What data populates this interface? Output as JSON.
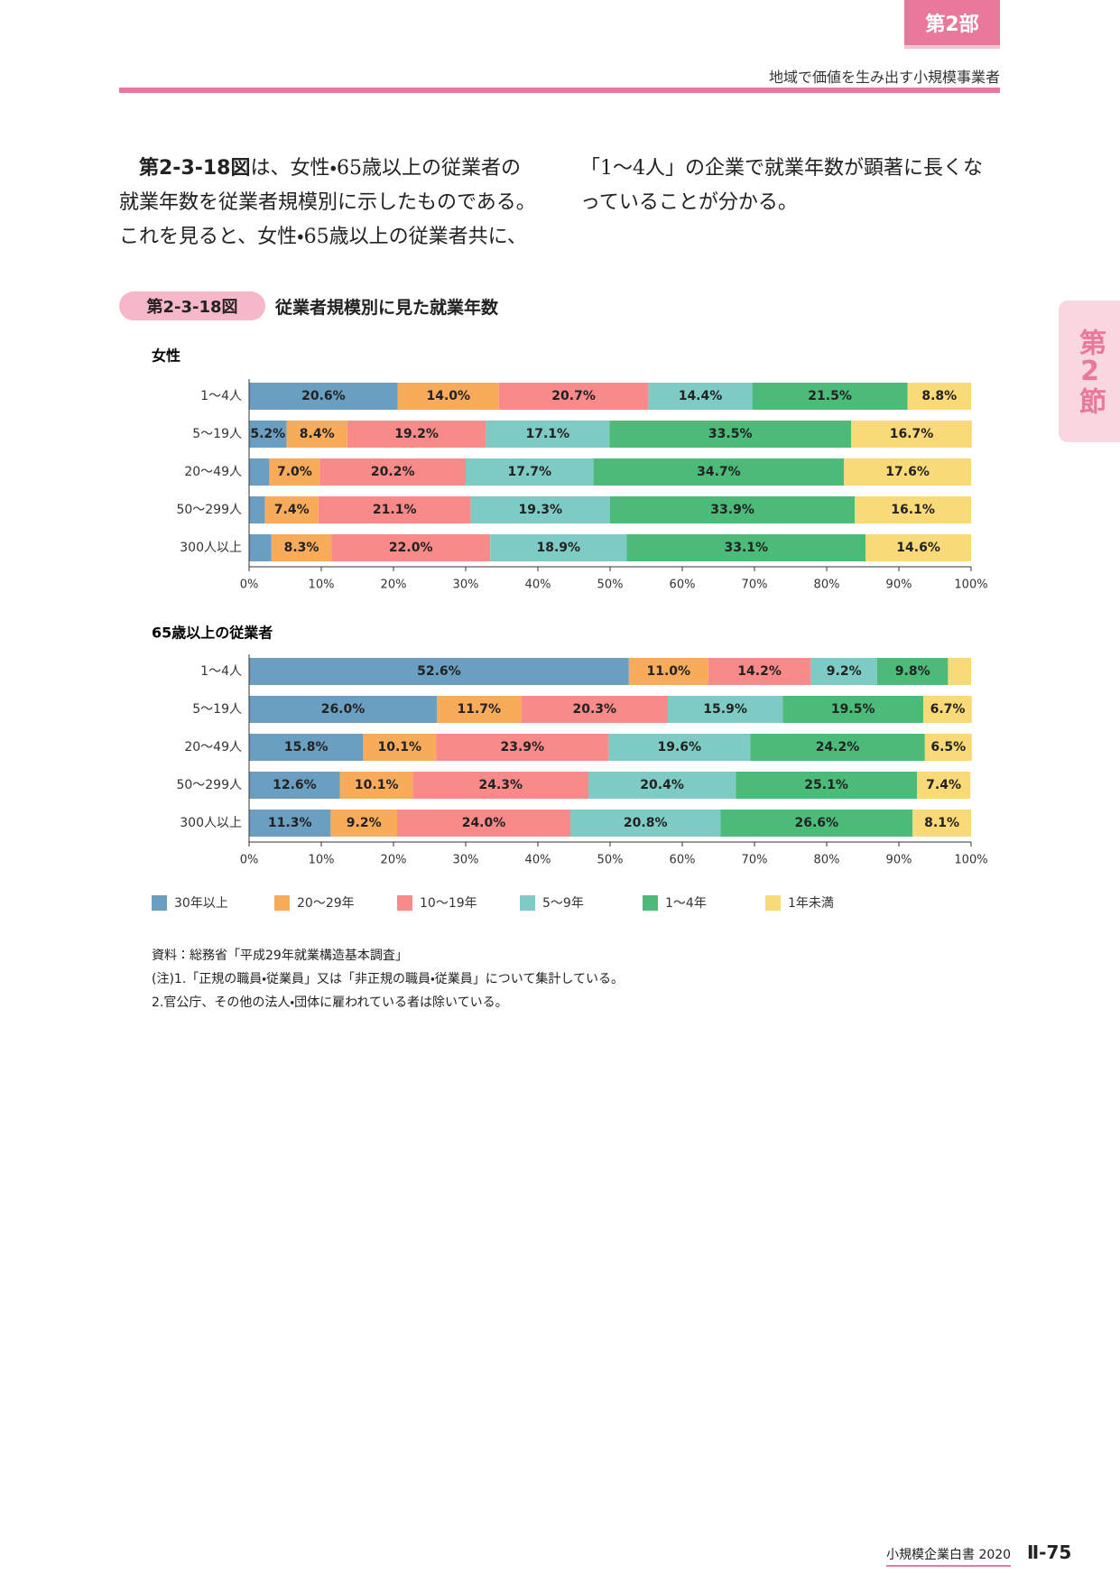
{
  "header": {
    "part": "第2部",
    "subtitle": "地域で価値を生み出す小規模事業者"
  },
  "side_tab": "第2節",
  "body": {
    "ref": "第2-3-18図",
    "text": "は、女性・65歳以上の従業者の就業年数を従業者規模別に示したものである。これを見ると、女性・65歳以上の従業者共に、「1～4人」の企業で就業年数が顕著に長くなっていることが分かる。"
  },
  "figure": {
    "label": "第2-3-18図",
    "title": "従業者規模別に見た就業年数"
  },
  "chart_data": [
    {
      "type": "bar",
      "orientation": "horizontal",
      "stacked": true,
      "title": "女性",
      "categories": [
        "1～4人",
        "5～19人",
        "20～49人",
        "50～299人",
        "300人以上"
      ],
      "series": [
        {
          "name": "30年以上",
          "color": "#6a9fc2",
          "values": [
            20.6,
            5.2,
            2.8,
            2.2,
            3.1
          ],
          "value_labels": [
            "20.6%",
            "5.2%",
            null,
            null,
            null
          ]
        },
        {
          "name": "20～29年",
          "color": "#f9ab5c",
          "values": [
            14.0,
            8.4,
            7.0,
            7.4,
            8.3
          ],
          "value_labels": [
            "14.0%",
            "8.4%",
            "7.0%",
            "7.4%",
            "8.3%"
          ]
        },
        {
          "name": "10～19年",
          "color": "#f98a8a",
          "values": [
            20.7,
            19.2,
            20.2,
            21.1,
            22.0
          ],
          "value_labels": [
            "20.7%",
            "19.2%",
            "20.2%",
            "21.1%",
            "22.0%"
          ]
        },
        {
          "name": "5～9年",
          "color": "#7ecbc6",
          "values": [
            14.4,
            17.1,
            17.7,
            19.3,
            18.9
          ],
          "value_labels": [
            "14.4%",
            "17.1%",
            "17.7%",
            "19.3%",
            "18.9%"
          ]
        },
        {
          "name": "1～4年",
          "color": "#4cbb7a",
          "values": [
            21.5,
            33.5,
            34.7,
            33.9,
            33.1
          ],
          "value_labels": [
            "21.5%",
            "33.5%",
            "34.7%",
            "33.9%",
            "33.1%"
          ]
        },
        {
          "name": "1年未満",
          "color": "#f9d978",
          "values": [
            8.8,
            16.7,
            17.6,
            16.1,
            14.6
          ],
          "value_labels": [
            "8.8%",
            "16.7%",
            "17.6%",
            "16.1%",
            "14.6%"
          ]
        }
      ],
      "xlim": [
        0,
        100
      ],
      "xticks": [
        {
          "value": 0,
          "label": "0%"
        },
        {
          "value": 10,
          "label": "10%"
        },
        {
          "value": 20,
          "label": "20%"
        },
        {
          "value": 30,
          "label": "30%"
        },
        {
          "value": 40,
          "label": "40%"
        },
        {
          "value": 50,
          "label": "50%"
        },
        {
          "value": 60,
          "label": "60%"
        },
        {
          "value": 70,
          "label": "70%"
        },
        {
          "value": 80,
          "label": "80%"
        },
        {
          "value": 90,
          "label": "90%"
        },
        {
          "value": 100,
          "label": "100%"
        }
      ]
    },
    {
      "type": "bar",
      "orientation": "horizontal",
      "stacked": true,
      "title": "65歳以上の従業者",
      "categories": [
        "1～4人",
        "5～19人",
        "20～49人",
        "50～299人",
        "300人以上"
      ],
      "series": [
        {
          "color": "#6a9fc2",
          "values": [
            52.6,
            26.0,
            15.8,
            12.6,
            11.3
          ],
          "value_labels": [
            "52.6%",
            "26.0%",
            "15.8%",
            "12.6%",
            "11.3%"
          ]
        },
        {
          "color": "#f9ab5c",
          "values": [
            11.0,
            11.7,
            10.1,
            10.1,
            9.2
          ],
          "value_labels": [
            "11.0%",
            "11.7%",
            "10.1%",
            "10.1%",
            "9.2%"
          ]
        },
        {
          "color": "#f98a8a",
          "values": [
            14.2,
            20.3,
            23.9,
            24.3,
            24.0
          ],
          "value_labels": [
            "14.2%",
            "20.3%",
            "23.9%",
            "24.3%",
            "24.0%"
          ]
        },
        {
          "color": "#7ecbc6",
          "values": [
            9.2,
            15.9,
            19.6,
            20.4,
            20.8
          ],
          "value_labels": [
            "9.2%",
            "15.9%",
            "19.6%",
            "20.4%",
            "20.8%"
          ]
        },
        {
          "color": "#4cbb7a",
          "values": [
            9.8,
            19.5,
            24.2,
            25.1,
            26.6
          ],
          "value_labels": [
            "9.8%",
            "19.5%",
            "24.2%",
            "25.1%",
            "26.6%"
          ]
        },
        {
          "color": "#f9d978",
          "values": [
            3.2,
            6.7,
            6.5,
            7.4,
            8.1
          ],
          "value_labels": [
            null,
            "6.7%",
            "6.5%",
            "7.4%",
            "8.1%"
          ]
        }
      ],
      "xlim": [
        0,
        100
      ],
      "xticks": [
        {
          "value": 0,
          "label": "0%"
        },
        {
          "value": 10,
          "label": "10%"
        },
        {
          "value": 20,
          "label": "20%"
        },
        {
          "value": 30,
          "label": "30%"
        },
        {
          "value": 40,
          "label": "40%"
        },
        {
          "value": 50,
          "label": "50%"
        },
        {
          "value": 60,
          "label": "60%"
        },
        {
          "value": 70,
          "label": "70%"
        },
        {
          "value": 80,
          "label": "80%"
        },
        {
          "value": 90,
          "label": "90%"
        },
        {
          "value": 100,
          "label": "100%"
        }
      ]
    }
  ],
  "notes": [
    "資料：総務省「平成29年就業構造基本調査」",
    "(注)1.「正規の職員・従業員」又は「非正規の職員・従業員」について集計している。",
    "2.官公庁、その他の法人・団体に雇われている者は除いている。"
  ],
  "footer": {
    "book": "小規模企業白書 2020",
    "page": "Ⅱ-75"
  }
}
